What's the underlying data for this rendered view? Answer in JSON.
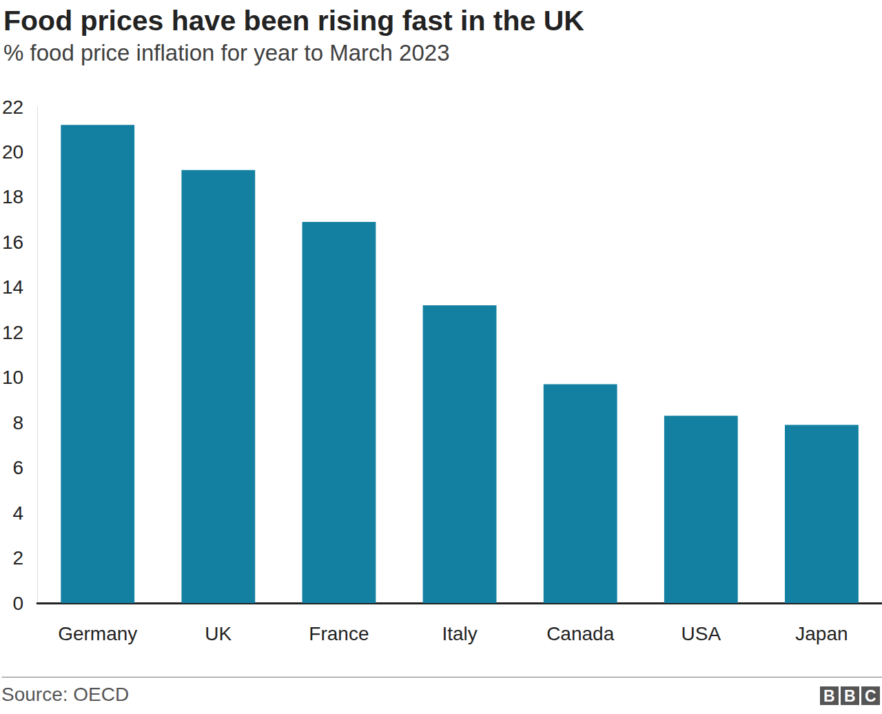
{
  "chart_data": {
    "type": "bar",
    "title": "Food prices have been rising fast in the UK",
    "subtitle": "% food price inflation for year to March 2023",
    "categories": [
      "Germany",
      "UK",
      "France",
      "Italy",
      "Canada",
      "USA",
      "Japan"
    ],
    "values": [
      21.2,
      19.2,
      16.9,
      13.2,
      9.7,
      8.3,
      7.9
    ],
    "color": "#1380a1",
    "ylim": [
      0,
      22
    ],
    "yticks": [
      0,
      2,
      4,
      6,
      8,
      10,
      12,
      14,
      16,
      18,
      20,
      22
    ],
    "grid": false,
    "source": "Source: OECD",
    "logo": "BBC"
  }
}
